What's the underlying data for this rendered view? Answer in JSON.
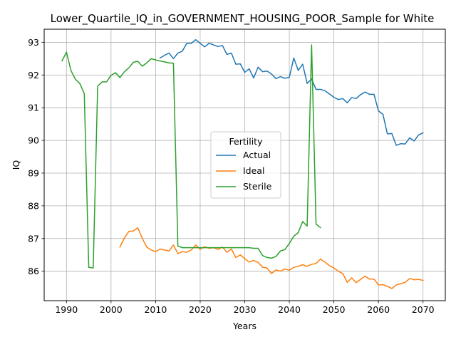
{
  "chart_data": {
    "type": "line",
    "title": "Lower_Quartile_IQ_in_GOVERNMENT_HOUSING_POOR_Sample for White",
    "xlabel": "Years",
    "ylabel": "IQ",
    "xlim": [
      1985,
      2075
    ],
    "ylim": [
      85.1,
      93.4
    ],
    "x_ticks": [
      1990,
      2000,
      2010,
      2020,
      2030,
      2040,
      2050,
      2060,
      2070
    ],
    "y_ticks": [
      86,
      87,
      88,
      89,
      90,
      91,
      92,
      93
    ],
    "grid": true,
    "legend": {
      "title": "Fertility",
      "placement": "center"
    },
    "series": [
      {
        "name": "Actual",
        "color": "#1f77b4",
        "points": [
          [
            2011,
            92.52
          ],
          [
            2012,
            92.6
          ],
          [
            2013,
            92.67
          ],
          [
            2014,
            92.5
          ],
          [
            2015,
            92.67
          ],
          [
            2016,
            92.73
          ],
          [
            2017,
            92.97
          ],
          [
            2018,
            92.97
          ],
          [
            2019,
            93.08
          ],
          [
            2020,
            92.97
          ],
          [
            2021,
            92.86
          ],
          [
            2022,
            92.97
          ],
          [
            2023,
            92.92
          ],
          [
            2024,
            92.87
          ],
          [
            2025,
            92.9
          ],
          [
            2026,
            92.63
          ],
          [
            2027,
            92.67
          ],
          [
            2028,
            92.33
          ],
          [
            2029,
            92.34
          ],
          [
            2030,
            92.08
          ],
          [
            2031,
            92.19
          ],
          [
            2032,
            91.91
          ],
          [
            2033,
            92.24
          ],
          [
            2034,
            92.1
          ],
          [
            2035,
            92.12
          ],
          [
            2036,
            92.03
          ],
          [
            2037,
            91.89
          ],
          [
            2038,
            91.95
          ],
          [
            2039,
            91.9
          ],
          [
            2040,
            91.93
          ],
          [
            2041,
            92.52
          ],
          [
            2042,
            92.14
          ],
          [
            2043,
            92.33
          ],
          [
            2044,
            91.74
          ],
          [
            2045,
            91.88
          ],
          [
            2046,
            91.56
          ],
          [
            2047,
            91.56
          ],
          [
            2048,
            91.52
          ],
          [
            2049,
            91.42
          ],
          [
            2050,
            91.32
          ],
          [
            2051,
            91.25
          ],
          [
            2052,
            91.28
          ],
          [
            2053,
            91.15
          ],
          [
            2054,
            91.31
          ],
          [
            2055,
            91.28
          ],
          [
            2056,
            91.4
          ],
          [
            2057,
            91.48
          ],
          [
            2058,
            91.41
          ],
          [
            2059,
            91.41
          ],
          [
            2060,
            90.9
          ],
          [
            2061,
            90.8
          ],
          [
            2062,
            90.2
          ],
          [
            2063,
            90.21
          ],
          [
            2064,
            89.85
          ],
          [
            2065,
            89.9
          ],
          [
            2066,
            89.89
          ],
          [
            2067,
            90.08
          ],
          [
            2068,
            89.98
          ],
          [
            2069,
            90.17
          ],
          [
            2070,
            90.23
          ]
        ]
      },
      {
        "name": "Ideal",
        "color": "#ff7f0e",
        "points": [
          [
            2002,
            86.74
          ],
          [
            2003,
            87.02
          ],
          [
            2004,
            87.22
          ],
          [
            2005,
            87.23
          ],
          [
            2006,
            87.33
          ],
          [
            2007,
            87.01
          ],
          [
            2008,
            86.74
          ],
          [
            2009,
            86.65
          ],
          [
            2010,
            86.6
          ],
          [
            2011,
            86.68
          ],
          [
            2012,
            86.65
          ],
          [
            2013,
            86.62
          ],
          [
            2014,
            86.8
          ],
          [
            2015,
            86.54
          ],
          [
            2016,
            86.6
          ],
          [
            2017,
            86.58
          ],
          [
            2018,
            86.65
          ],
          [
            2019,
            86.8
          ],
          [
            2020,
            86.67
          ],
          [
            2021,
            86.75
          ],
          [
            2022,
            86.7
          ],
          [
            2023,
            86.72
          ],
          [
            2024,
            86.67
          ],
          [
            2025,
            86.74
          ],
          [
            2026,
            86.58
          ],
          [
            2027,
            86.68
          ],
          [
            2028,
            86.42
          ],
          [
            2029,
            86.5
          ],
          [
            2030,
            86.38
          ],
          [
            2031,
            86.28
          ],
          [
            2032,
            86.33
          ],
          [
            2033,
            86.27
          ],
          [
            2034,
            86.12
          ],
          [
            2035,
            86.1
          ],
          [
            2036,
            85.93
          ],
          [
            2037,
            86.04
          ],
          [
            2038,
            86.0
          ],
          [
            2039,
            86.07
          ],
          [
            2040,
            86.03
          ],
          [
            2041,
            86.12
          ],
          [
            2042,
            86.15
          ],
          [
            2043,
            86.2
          ],
          [
            2044,
            86.15
          ],
          [
            2045,
            86.21
          ],
          [
            2046,
            86.24
          ],
          [
            2047,
            86.37
          ],
          [
            2048,
            86.28
          ],
          [
            2049,
            86.17
          ],
          [
            2050,
            86.1
          ],
          [
            2051,
            86.0
          ],
          [
            2052,
            85.93
          ],
          [
            2053,
            85.66
          ],
          [
            2054,
            85.8
          ],
          [
            2055,
            85.65
          ],
          [
            2056,
            85.75
          ],
          [
            2057,
            85.85
          ],
          [
            2058,
            85.76
          ],
          [
            2059,
            85.76
          ],
          [
            2060,
            85.58
          ],
          [
            2061,
            85.59
          ],
          [
            2062,
            85.54
          ],
          [
            2063,
            85.47
          ],
          [
            2064,
            85.58
          ],
          [
            2065,
            85.62
          ],
          [
            2066,
            85.66
          ],
          [
            2067,
            85.78
          ],
          [
            2068,
            85.74
          ],
          [
            2069,
            85.75
          ],
          [
            2070,
            85.72
          ]
        ]
      },
      {
        "name": "Sterile",
        "color": "#2ca02c",
        "points": [
          [
            1989,
            92.43
          ],
          [
            1990,
            92.7
          ],
          [
            1991,
            92.14
          ],
          [
            1992,
            91.87
          ],
          [
            1993,
            91.74
          ],
          [
            1994,
            91.43
          ],
          [
            1995,
            86.12
          ],
          [
            1996,
            86.1
          ],
          [
            1997,
            91.66
          ],
          [
            1998,
            91.79
          ],
          [
            1999,
            91.79
          ],
          [
            2000,
            91.99
          ],
          [
            2001,
            92.07
          ],
          [
            2002,
            91.92
          ],
          [
            2003,
            92.1
          ],
          [
            2004,
            92.22
          ],
          [
            2005,
            92.39
          ],
          [
            2006,
            92.42
          ],
          [
            2007,
            92.27
          ],
          [
            2008,
            92.37
          ],
          [
            2009,
            92.5
          ],
          [
            2010,
            92.46
          ],
          [
            2011,
            92.43
          ],
          [
            2012,
            92.4
          ],
          [
            2013,
            92.37
          ],
          [
            2014,
            92.36
          ],
          [
            2015,
            86.77
          ],
          [
            2016,
            86.72
          ],
          [
            2017,
            86.72
          ],
          [
            2018,
            86.72
          ],
          [
            2019,
            86.72
          ],
          [
            2020,
            86.72
          ],
          [
            2021,
            86.72
          ],
          [
            2022,
            86.72
          ],
          [
            2023,
            86.72
          ],
          [
            2024,
            86.72
          ],
          [
            2025,
            86.72
          ],
          [
            2026,
            86.72
          ],
          [
            2027,
            86.72
          ],
          [
            2028,
            86.72
          ],
          [
            2029,
            86.72
          ],
          [
            2030,
            86.72
          ],
          [
            2031,
            86.72
          ],
          [
            2032,
            86.7
          ],
          [
            2033,
            86.7
          ],
          [
            2034,
            86.48
          ],
          [
            2035,
            86.42
          ],
          [
            2036,
            86.4
          ],
          [
            2037,
            86.45
          ],
          [
            2038,
            86.62
          ],
          [
            2039,
            86.66
          ],
          [
            2040,
            86.85
          ],
          [
            2041,
            87.07
          ],
          [
            2042,
            87.18
          ],
          [
            2043,
            87.52
          ],
          [
            2044,
            87.38
          ],
          [
            2045,
            92.92
          ],
          [
            2046,
            87.44
          ],
          [
            2047,
            87.33
          ]
        ]
      }
    ]
  }
}
